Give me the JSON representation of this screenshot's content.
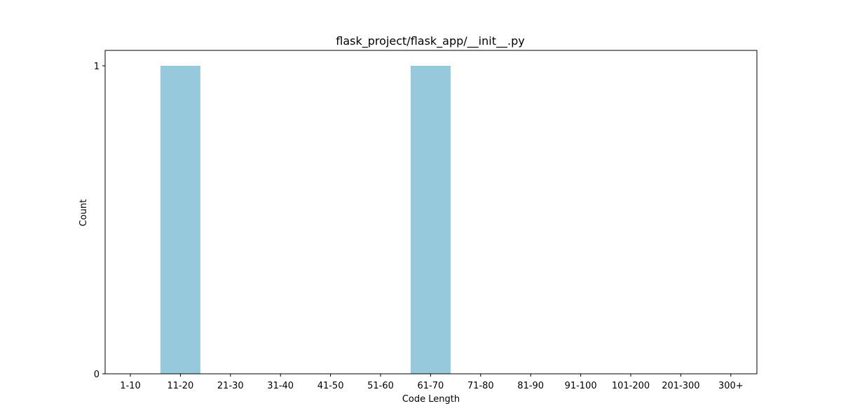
{
  "chart_data": {
    "type": "bar",
    "title": "flask_project/flask_app/__init__.py",
    "xlabel": "Code Length",
    "ylabel": "Count",
    "categories": [
      "1-10",
      "11-20",
      "21-30",
      "31-40",
      "41-50",
      "51-60",
      "61-70",
      "71-80",
      "81-90",
      "91-100",
      "101-200",
      "201-300",
      "300+"
    ],
    "values": [
      0,
      1,
      0,
      0,
      0,
      0,
      1,
      0,
      0,
      0,
      0,
      0,
      0
    ],
    "ylim": [
      0,
      1
    ],
    "yticks": [
      "0",
      "1"
    ],
    "bar_color": "#96c9dc",
    "grid": false,
    "legend": "none"
  }
}
